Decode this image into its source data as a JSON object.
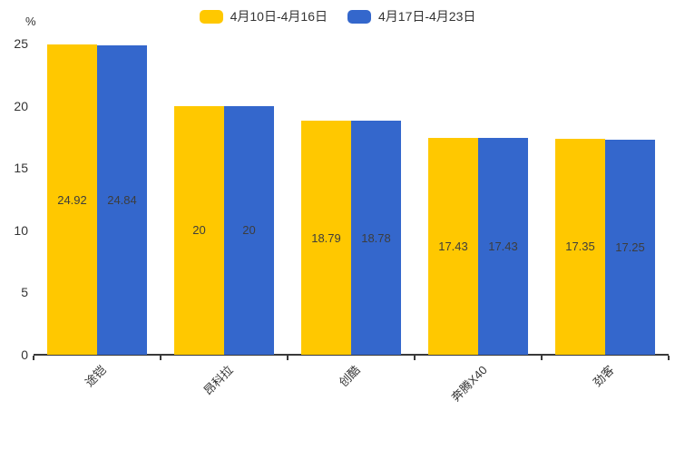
{
  "chart_data": {
    "type": "bar",
    "title": "",
    "xlabel": "",
    "ylabel": "%",
    "categories": [
      "途铠",
      "昂科拉",
      "创酷",
      "奔腾X40",
      "劲客"
    ],
    "series": [
      {
        "name": "4月10日-4月16日",
        "color": "#FFC800",
        "values": [
          24.92,
          20,
          18.79,
          17.43,
          17.35
        ]
      },
      {
        "name": "4月17日-4月23日",
        "color": "#3467CC",
        "values": [
          24.84,
          20,
          18.78,
          17.43,
          17.25
        ]
      }
    ],
    "y_ticks": [
      0,
      5,
      10,
      15,
      20,
      25
    ],
    "ylim": [
      0,
      25
    ],
    "grid": false,
    "legend_position": "top",
    "value_labels": "centered-in-bar",
    "x_label_rotation_deg": -45
  },
  "colors": {
    "background": "#ffffff",
    "axis": "#3a3a3a",
    "text": "#333333",
    "bar_value_text": "#3d3d3d"
  }
}
